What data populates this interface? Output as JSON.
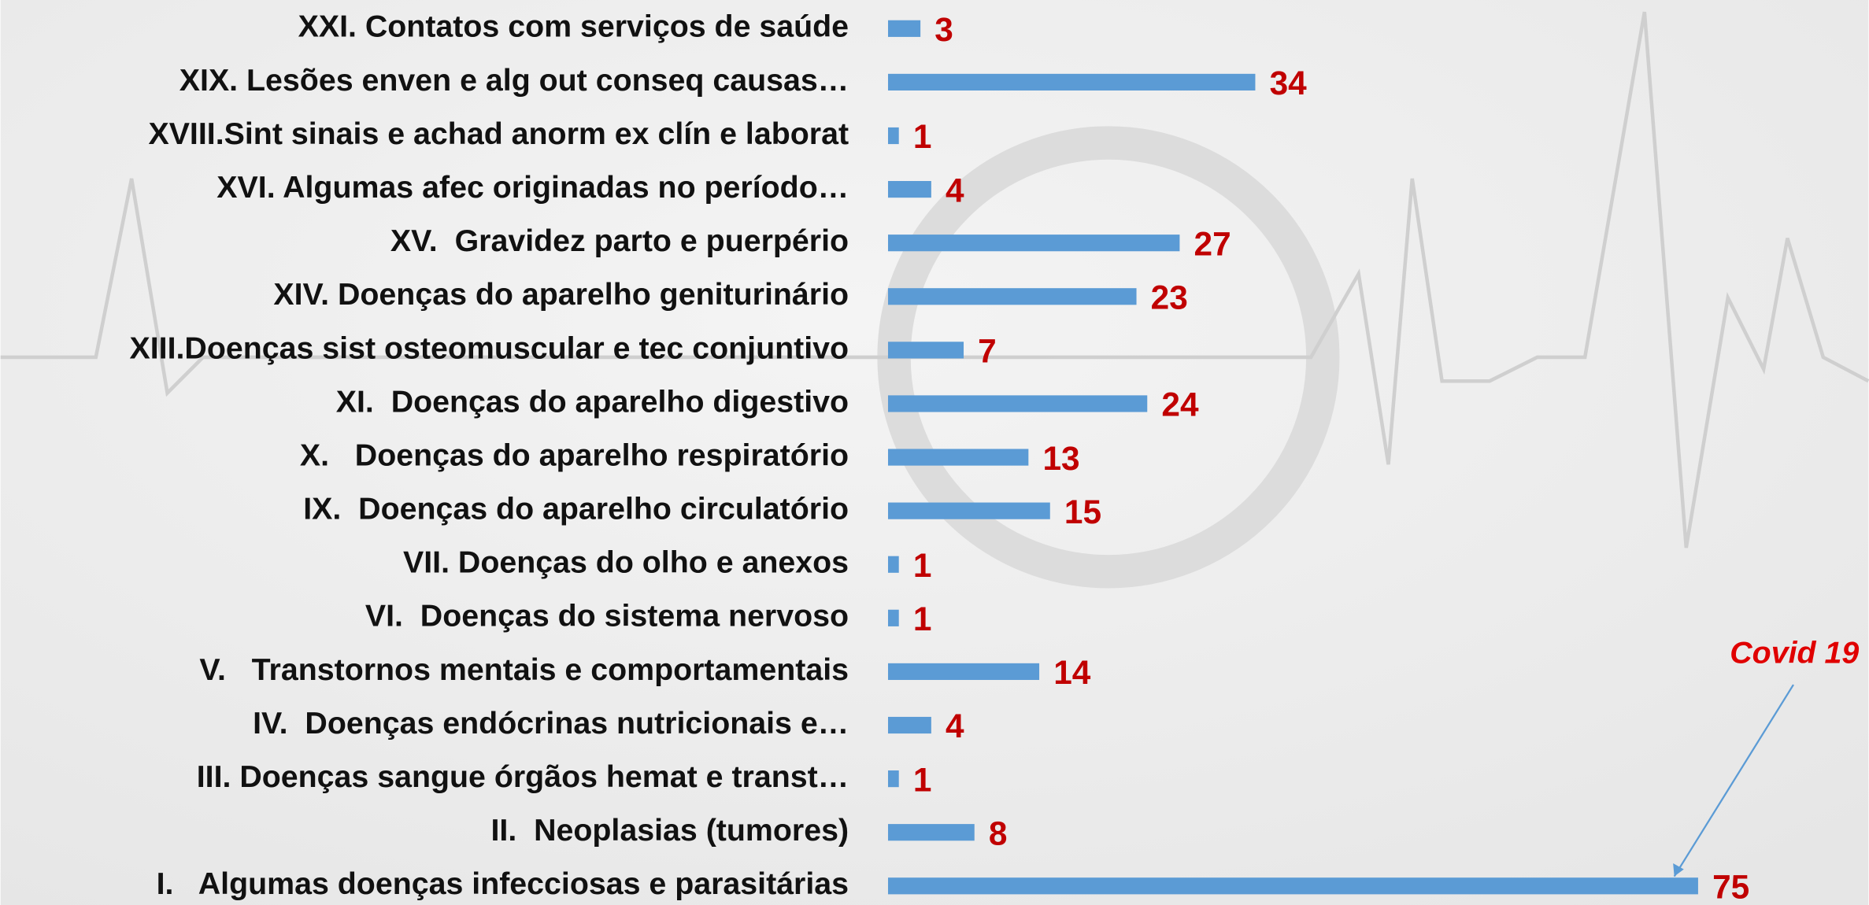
{
  "chart_data": {
    "type": "barh",
    "categories": [
      "XXI. Contatos com serviços de saúde",
      "XIX. Lesões enven e alg out conseq causas…",
      "XVIII.Sint sinais e achad anorm ex clín e laborat",
      "XVI. Algumas afec originadas no período…",
      "XV.  Gravidez parto e puerpério",
      "XIV. Doenças do aparelho geniturinário",
      "XIII.Doenças sist osteomuscular e tec conjuntivo",
      "XI.  Doenças do aparelho digestivo",
      "X.   Doenças do aparelho respiratório",
      "IX.  Doenças do aparelho circulatório",
      "VII. Doenças do olho e anexos",
      "VI.  Doenças do sistema nervoso",
      "V.   Transtornos mentais e comportamentais",
      "IV.  Doenças endócrinas nutricionais e…",
      "III. Doenças sangue órgãos hemat e transt…",
      "II.  Neoplasias (tumores)",
      "I.   Algumas doenças infecciosas e parasitárias"
    ],
    "values": [
      3,
      34,
      1,
      4,
      27,
      23,
      7,
      24,
      13,
      15,
      1,
      1,
      14,
      4,
      1,
      8,
      75
    ],
    "color": "#5b9bd5",
    "label_color": "#c00000",
    "xlim": [
      0,
      90
    ],
    "annotation": {
      "text": "Covid 19",
      "target": 16
    }
  }
}
